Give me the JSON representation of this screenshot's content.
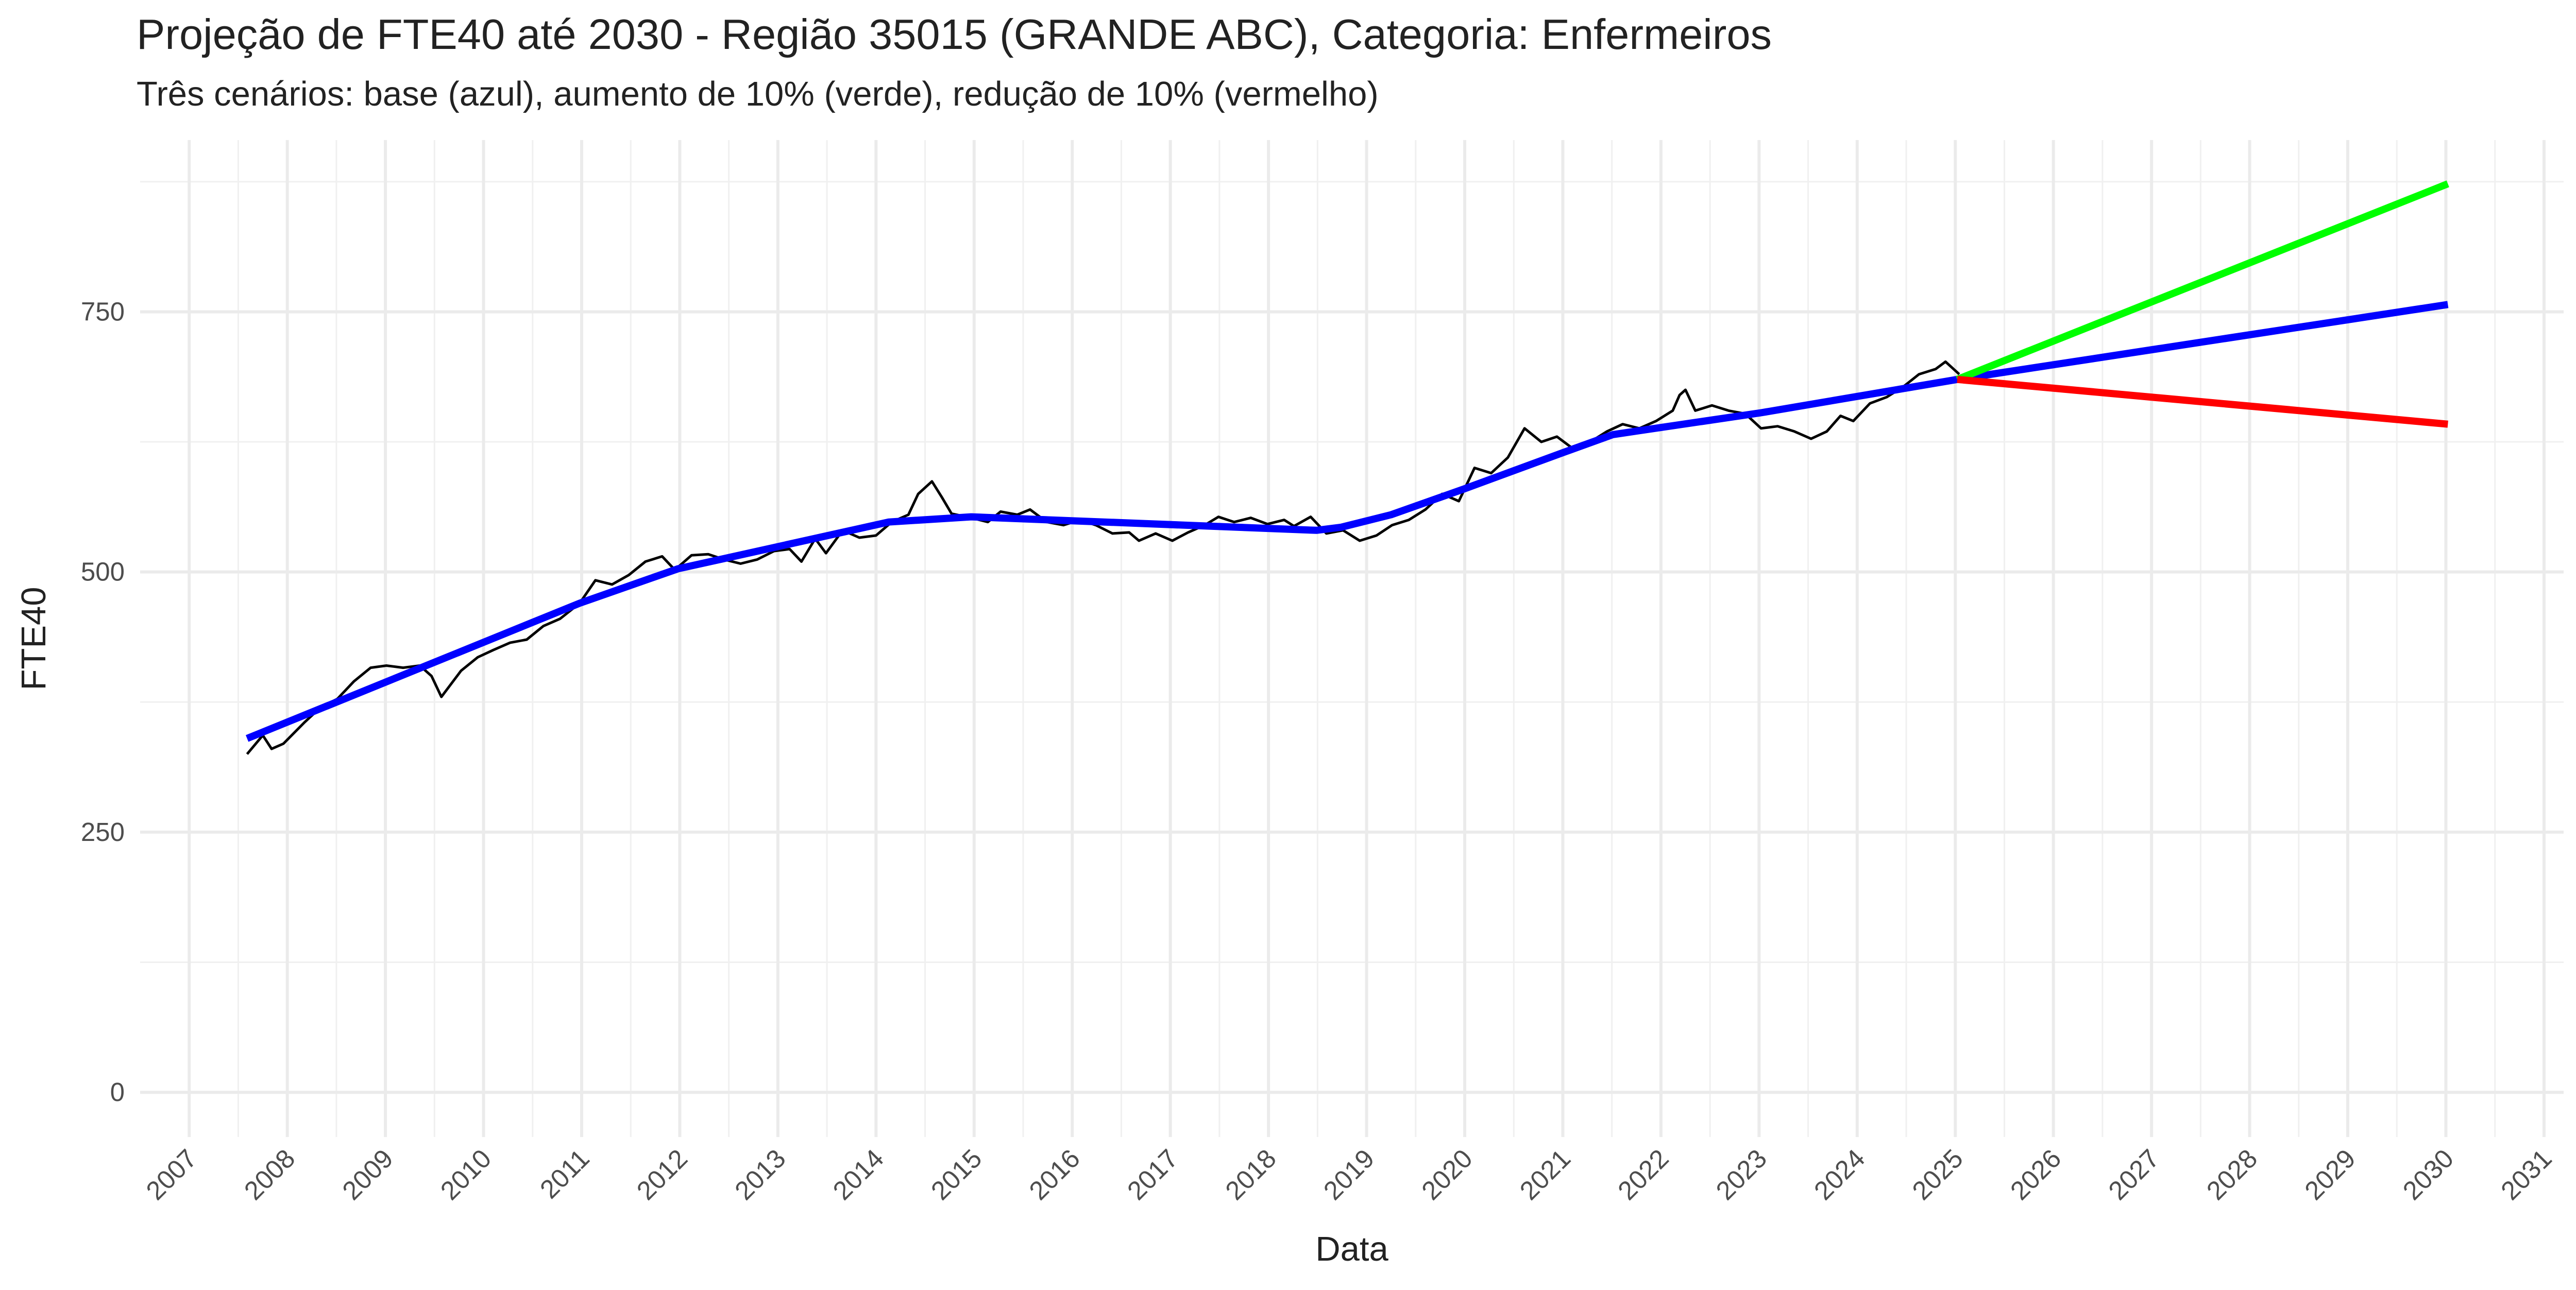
{
  "chart_data": {
    "type": "line",
    "title": "Projeção de FTE40 até 2030 - Região 35015 (GRANDE ABC), Categoria: Enfermeiros",
    "subtitle": "Três cenários: base (azul), aumento de 10% (verde), redução de 10% (vermelho)",
    "x_label": "Data",
    "y_label": "FTE40",
    "xlim": [
      2006.5,
      2031.2
    ],
    "ylim": [
      -43,
      915
    ],
    "xticks": [
      2007,
      2008,
      2009,
      2010,
      2011,
      2012,
      2013,
      2014,
      2015,
      2016,
      2017,
      2018,
      2019,
      2020,
      2021,
      2022,
      2023,
      2024,
      2025,
      2026,
      2027,
      2028,
      2029,
      2030,
      2031
    ],
    "yticks": [
      0,
      250,
      500,
      750
    ],
    "grid": true,
    "series": [
      {
        "color": "#000000",
        "width": "thin",
        "x": [
          2007.59,
          2007.75,
          2007.84,
          2007.96,
          2008.17,
          2008.34,
          2008.51,
          2008.68,
          2008.85,
          2009.01,
          2009.18,
          2009.35,
          2009.47,
          2009.57,
          2009.77,
          2009.94,
          2010.1,
          2010.27,
          2010.44,
          2010.61,
          2010.78,
          2010.98,
          2011.14,
          2011.31,
          2011.48,
          2011.65,
          2011.82,
          2011.95,
          2012.12,
          2012.29,
          2012.45,
          2012.62,
          2012.79,
          2012.96,
          2013.12,
          2013.24,
          2013.38,
          2013.49,
          2013.66,
          2013.83,
          2014.0,
          2014.16,
          2014.33,
          2014.43,
          2014.57,
          2014.67,
          2014.77,
          2014.97,
          2015.14,
          2015.27,
          2015.44,
          2015.57,
          2015.74,
          2015.91,
          2016.08,
          2016.24,
          2016.41,
          2016.58,
          2016.68,
          2016.85,
          2017.02,
          2017.18,
          2017.35,
          2017.49,
          2017.65,
          2017.82,
          2017.99,
          2018.16,
          2018.26,
          2018.43,
          2018.59,
          2018.76,
          2018.93,
          2019.1,
          2019.26,
          2019.43,
          2019.6,
          2019.77,
          2019.94,
          2020.1,
          2020.27,
          2020.44,
          2020.61,
          2020.78,
          2020.94,
          2021.11,
          2021.28,
          2021.45,
          2021.61,
          2021.78,
          2021.95,
          2022.12,
          2022.19,
          2022.25,
          2022.35,
          2022.52,
          2022.69,
          2022.86,
          2023.02,
          2023.19,
          2023.36,
          2023.53,
          2023.69,
          2023.83,
          2023.96,
          2024.13,
          2024.3,
          2024.47,
          2024.63,
          2024.8,
          2024.9,
          2025.04
        ],
        "values": [
          325,
          343,
          330,
          335,
          355,
          370,
          378,
          395,
          408,
          410,
          408,
          410,
          400,
          380,
          405,
          418,
          425,
          432,
          435,
          448,
          455,
          470,
          492,
          488,
          497,
          510,
          515,
          502,
          516,
          517,
          512,
          508,
          512,
          520,
          522,
          510,
          532,
          518,
          540,
          533,
          535,
          548,
          555,
          575,
          587,
          572,
          556,
          552,
          548,
          558,
          555,
          560,
          548,
          545,
          550,
          545,
          537,
          538,
          530,
          537,
          530,
          538,
          545,
          553,
          548,
          552,
          546,
          550,
          544,
          553,
          537,
          540,
          530,
          535,
          545,
          550,
          560,
          575,
          568,
          600,
          595,
          610,
          638,
          625,
          630,
          618,
          625,
          635,
          642,
          638,
          645,
          655,
          670,
          675,
          655,
          660,
          655,
          652,
          638,
          640,
          635,
          628,
          635,
          650,
          645,
          662,
          668,
          678,
          690,
          695,
          702,
          690
        ]
      },
      {
        "color": "#0000ff",
        "width": "thick",
        "x": [
          2007.59,
          2010.98,
          2011.98,
          2014.13,
          2014.97,
          2018.49,
          2018.74,
          2019.25,
          2020.0,
          2021.01,
          2021.51,
          2023.02,
          2025.02,
          2030.02
        ],
        "values": [
          340,
          470,
          503,
          548,
          553,
          540,
          543,
          555,
          580,
          615,
          632,
          653,
          685,
          757
        ]
      },
      {
        "color": "#00ff00",
        "width": "thick",
        "x": [
          2025.02,
          2030.02
        ],
        "values": [
          685,
          873
        ]
      },
      {
        "color": "#ff0000",
        "width": "thick",
        "x": [
          2025.02,
          2030.02
        ],
        "values": [
          685,
          642
        ]
      }
    ]
  }
}
